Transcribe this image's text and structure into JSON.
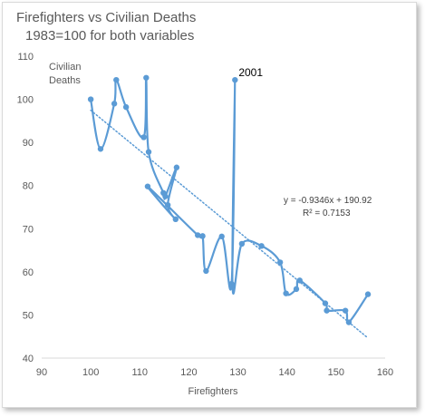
{
  "chart_data": {
    "type": "scatter",
    "title": "Firefighters vs Civilian Deaths",
    "subtitle": "1983=100 for both variables",
    "xlabel": "Firefighters",
    "ylabel": "Civilian Deaths",
    "xlim": [
      90,
      160
    ],
    "ylim": [
      40,
      110
    ],
    "xticks": [
      90,
      100,
      110,
      120,
      130,
      140,
      150,
      160
    ],
    "yticks": [
      40,
      50,
      60,
      70,
      80,
      90,
      100,
      110
    ],
    "grid": false,
    "series_color": "#5b9bd5",
    "trendline_color": "#5b9bd5",
    "points": [
      [
        100,
        100
      ],
      [
        102,
        88.5
      ],
      [
        104.8,
        99
      ],
      [
        105.2,
        104.5
      ],
      [
        107.2,
        98.2
      ],
      [
        110.8,
        91.2
      ],
      [
        111.3,
        105
      ],
      [
        111.8,
        87.8
      ],
      [
        114.8,
        78.3
      ],
      [
        115.2,
        77.5
      ],
      [
        117.5,
        84.2
      ],
      [
        115.7,
        75.5
      ],
      [
        117.3,
        72.2
      ],
      [
        111.6,
        79.8
      ],
      [
        121.8,
        68.5
      ],
      [
        122.8,
        68.3
      ],
      [
        123.5,
        60.2
      ],
      [
        126.7,
        68.2
      ],
      [
        128.7,
        57.2
      ],
      [
        129.4,
        104.5
      ],
      [
        128.9,
        56.5
      ],
      [
        130.8,
        66.5
      ],
      [
        134.8,
        66
      ],
      [
        138.6,
        62.2
      ],
      [
        139.8,
        55
      ],
      [
        141.9,
        56
      ],
      [
        142.6,
        58
      ],
      [
        147.8,
        52.7
      ],
      [
        148.1,
        51
      ],
      [
        151.9,
        51
      ],
      [
        152.6,
        48.3
      ],
      [
        156.5,
        54.8
      ]
    ],
    "trendline": {
      "slope": -0.9346,
      "intercept": 190.92,
      "x_range": [
        100,
        156.5
      ],
      "style": "dotted"
    },
    "annotations": [
      {
        "text": "2001",
        "x": 129.4,
        "y": 104.5
      },
      {
        "text": "y = -0.9346x + 190.92"
      },
      {
        "text": "R² = 0.7153"
      }
    ]
  }
}
